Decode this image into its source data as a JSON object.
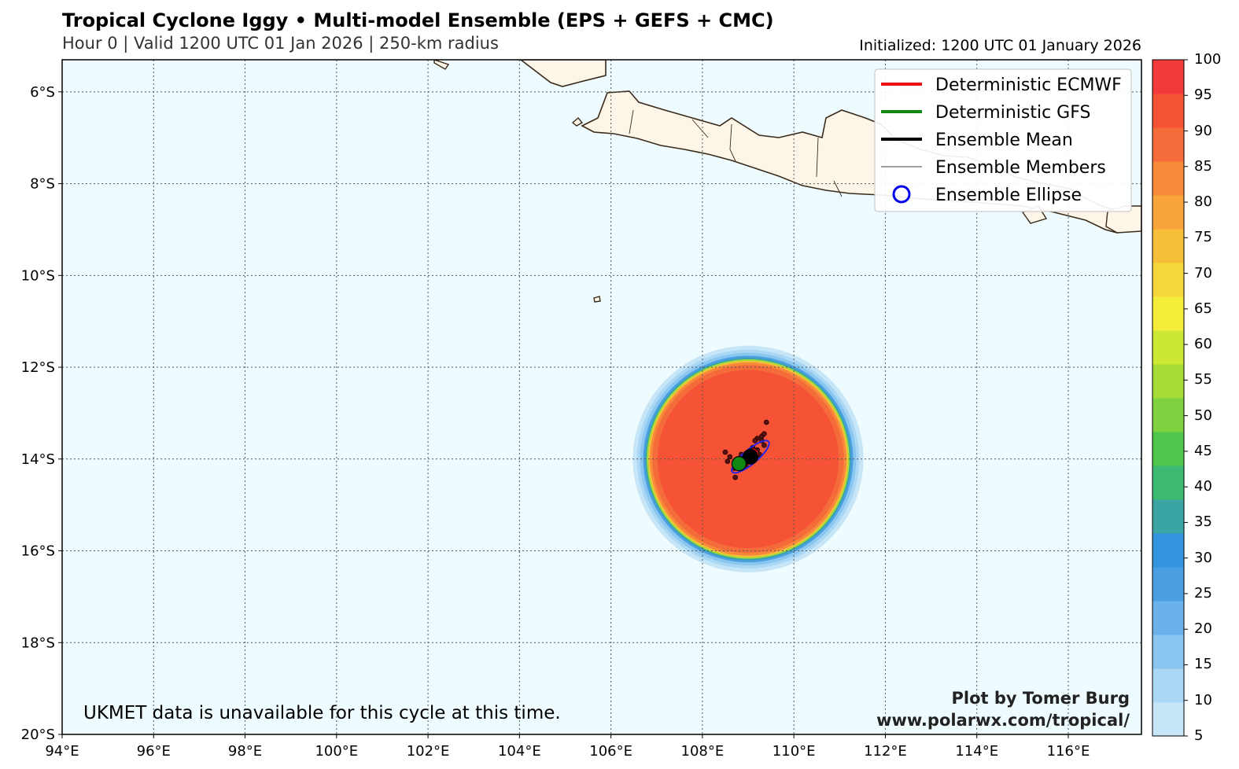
{
  "header": {
    "title": "Tropical Cyclone Iggy • Multi-model Ensemble (EPS + GEFS + CMC)",
    "subtitle": "Hour 0 | Valid 1200 UTC 01 Jan 2026 | 250-km radius",
    "initialized": "Initialized: 1200 UTC 01 January 2026"
  },
  "map": {
    "lon_range": [
      94,
      117.6
    ],
    "lat_range": [
      -20,
      -5.3
    ],
    "lon_ticks": [
      {
        "value": 94,
        "label": "94°E"
      },
      {
        "value": 96,
        "label": "96°E"
      },
      {
        "value": 98,
        "label": "98°E"
      },
      {
        "value": 100,
        "label": "100°E"
      },
      {
        "value": 102,
        "label": "102°E"
      },
      {
        "value": 104,
        "label": "104°E"
      },
      {
        "value": 106,
        "label": "106°E"
      },
      {
        "value": 108,
        "label": "108°E"
      },
      {
        "value": 110,
        "label": "110°E"
      },
      {
        "value": 112,
        "label": "112°E"
      },
      {
        "value": 114,
        "label": "114°E"
      },
      {
        "value": 116,
        "label": "116°E"
      }
    ],
    "lat_ticks": [
      {
        "value": -6,
        "label": "6°S"
      },
      {
        "value": -8,
        "label": "8°S"
      },
      {
        "value": -10,
        "label": "10°S"
      },
      {
        "value": -12,
        "label": "12°S"
      },
      {
        "value": -14,
        "label": "14°S"
      },
      {
        "value": -16,
        "label": "16°S"
      },
      {
        "value": -18,
        "label": "18°S"
      },
      {
        "value": -20,
        "label": "20°S"
      }
    ],
    "ocean_color": "#eefbff",
    "land_color": "#fdf6e8",
    "coast_color": "#3a2a1a",
    "storm": {
      "center_lon": 109.0,
      "center_lat": -14.0,
      "strike_probability": 90,
      "radius_deg": 2.25
    },
    "ensemble_mean": {
      "lon": 109.05,
      "lat": -13.95
    },
    "gfs": {
      "lon": 108.8,
      "lat": -14.1
    },
    "ecmwf": {
      "lon": 109.1,
      "lat": -13.9
    },
    "ensemble_members": [
      [
        109.4,
        -13.2
      ],
      [
        109.3,
        -13.5
      ],
      [
        109.2,
        -13.55
      ],
      [
        109.35,
        -13.7
      ],
      [
        109.2,
        -13.8
      ],
      [
        109.1,
        -13.75
      ],
      [
        109.25,
        -13.9
      ],
      [
        109.0,
        -13.95
      ],
      [
        108.9,
        -14.0
      ],
      [
        108.85,
        -13.9
      ],
      [
        108.6,
        -13.95
      ],
      [
        108.55,
        -14.05
      ],
      [
        108.5,
        -13.85
      ],
      [
        108.7,
        -14.2
      ],
      [
        108.72,
        -14.4
      ],
      [
        109.15,
        -13.6
      ],
      [
        109.3,
        -13.6
      ],
      [
        108.95,
        -14.15
      ],
      [
        108.8,
        -14.05
      ],
      [
        109.05,
        -13.85
      ],
      [
        109.35,
        -13.45
      ]
    ]
  },
  "legend": {
    "items": [
      {
        "label": "Deterministic ECMWF",
        "color": "#ee1111"
      },
      {
        "label": "Deterministic GFS",
        "color": "#118811"
      },
      {
        "label": "Ensemble Mean",
        "color": "#000000"
      },
      {
        "label": "Ensemble Members",
        "color": "#000000"
      },
      {
        "label": "Ensemble Ellipse",
        "color": "#0000ee"
      }
    ]
  },
  "notes": {
    "ukmet": "UKMET data is unavailable for this cycle at this time.",
    "credit": "Plot by Tomer Burg",
    "url": "www.polarwx.com/tropical/"
  },
  "colorbar": {
    "ticks": [
      "5",
      "10",
      "15",
      "20",
      "25",
      "30",
      "35",
      "40",
      "45",
      "50",
      "55",
      "60",
      "65",
      "70",
      "75",
      "80",
      "85",
      "90",
      "95",
      "100"
    ],
    "colors": [
      "#c6e6f8",
      "#a9d7f4",
      "#8ac6ef",
      "#6cb2ea",
      "#4a9fe3",
      "#3393dc",
      "#3aa5a3",
      "#3dba72",
      "#51c64c",
      "#7fd13f",
      "#a6dc38",
      "#cde834",
      "#f4ee3a",
      "#f7d83a",
      "#f7be3a",
      "#f7a43a",
      "#f7893a",
      "#f46c3a",
      "#f55236",
      "#f23a3a"
    ]
  }
}
